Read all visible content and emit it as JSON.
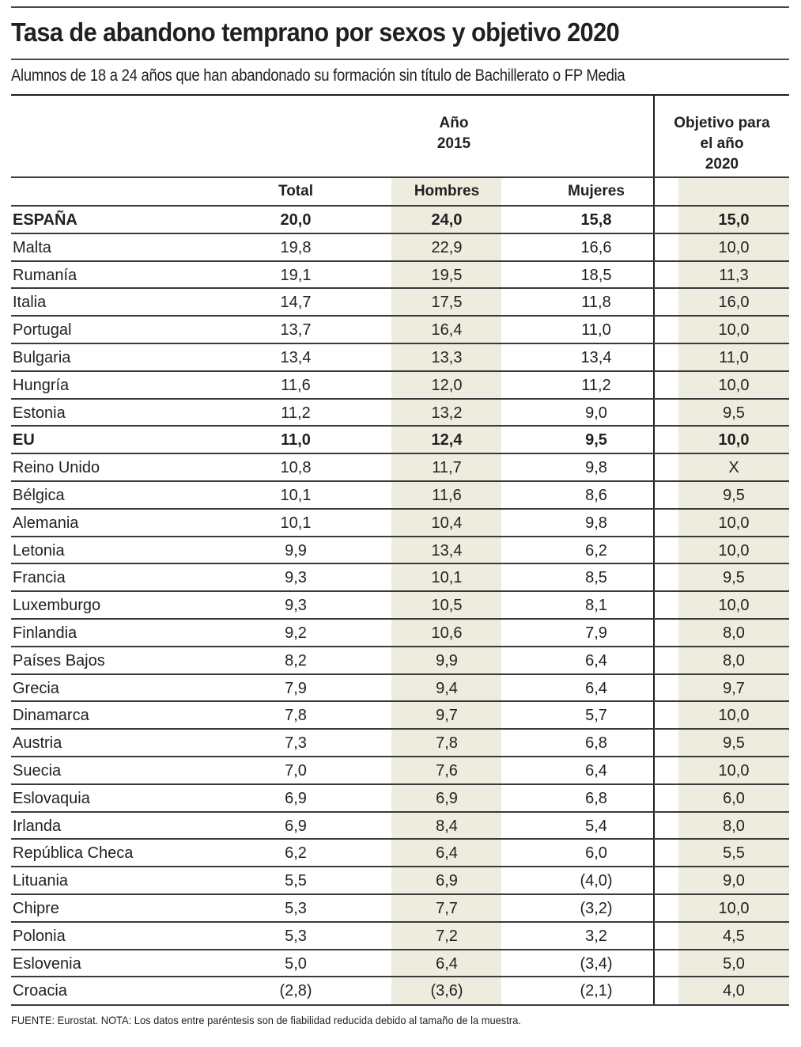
{
  "header": {
    "title": "Tasa de abandono temprano por sexos y objetivo 2020",
    "subtitle": "Alumnos de 18 a 24 años que han abandonado su formación sin título de Bachillerato o FP Media"
  },
  "table": {
    "group_header_year": [
      "Año",
      "2015"
    ],
    "group_header_objective": [
      "Objetivo para",
      "el año",
      "2020"
    ],
    "columns": [
      "Total",
      "Hombres",
      "Mujeres",
      ""
    ],
    "rows": [
      {
        "country": "ESPAÑA",
        "total": "20,0",
        "hombres": "24,0",
        "mujeres": "15,8",
        "objetivo": "15,0",
        "bold": true
      },
      {
        "country": "Malta",
        "total": "19,8",
        "hombres": "22,9",
        "mujeres": "16,6",
        "objetivo": "10,0",
        "bold": false
      },
      {
        "country": "Rumanía",
        "total": "19,1",
        "hombres": "19,5",
        "mujeres": "18,5",
        "objetivo": "11,3",
        "bold": false
      },
      {
        "country": "Italia",
        "total": "14,7",
        "hombres": "17,5",
        "mujeres": "11,8",
        "objetivo": "16,0",
        "bold": false
      },
      {
        "country": "Portugal",
        "total": "13,7",
        "hombres": "16,4",
        "mujeres": "11,0",
        "objetivo": "10,0",
        "bold": false
      },
      {
        "country": "Bulgaria",
        "total": "13,4",
        "hombres": "13,3",
        "mujeres": "13,4",
        "objetivo": "11,0",
        "bold": false
      },
      {
        "country": "Hungría",
        "total": "11,6",
        "hombres": "12,0",
        "mujeres": "11,2",
        "objetivo": "10,0",
        "bold": false
      },
      {
        "country": "Estonia",
        "total": "11,2",
        "hombres": "13,2",
        "mujeres": "9,0",
        "objetivo": "9,5",
        "bold": false
      },
      {
        "country": "EU",
        "total": "11,0",
        "hombres": "12,4",
        "mujeres": "9,5",
        "objetivo": "10,0",
        "bold": true
      },
      {
        "country": "Reino Unido",
        "total": "10,8",
        "hombres": "11,7",
        "mujeres": "9,8",
        "objetivo": "X",
        "bold": false
      },
      {
        "country": "Bélgica",
        "total": "10,1",
        "hombres": "11,6",
        "mujeres": "8,6",
        "objetivo": "9,5",
        "bold": false
      },
      {
        "country": "Alemania",
        "total": "10,1",
        "hombres": "10,4",
        "mujeres": "9,8",
        "objetivo": "10,0",
        "bold": false
      },
      {
        "country": "Letonia",
        "total": "9,9",
        "hombres": "13,4",
        "mujeres": "6,2",
        "objetivo": "10,0",
        "bold": false
      },
      {
        "country": "Francia",
        "total": "9,3",
        "hombres": "10,1",
        "mujeres": "8,5",
        "objetivo": "9,5",
        "bold": false
      },
      {
        "country": "Luxemburgo",
        "total": "9,3",
        "hombres": "10,5",
        "mujeres": "8,1",
        "objetivo": "10,0",
        "bold": false
      },
      {
        "country": "Finlandia",
        "total": "9,2",
        "hombres": "10,6",
        "mujeres": "7,9",
        "objetivo": "8,0",
        "bold": false
      },
      {
        "country": "Países Bajos",
        "total": "8,2",
        "hombres": "9,9",
        "mujeres": "6,4",
        "objetivo": "8,0",
        "bold": false
      },
      {
        "country": "Grecia",
        "total": "7,9",
        "hombres": "9,4",
        "mujeres": "6,4",
        "objetivo": "9,7",
        "bold": false
      },
      {
        "country": "Dinamarca",
        "total": "7,8",
        "hombres": "9,7",
        "mujeres": "5,7",
        "objetivo": "10,0",
        "bold": false
      },
      {
        "country": "Austria",
        "total": "7,3",
        "hombres": "7,8",
        "mujeres": "6,8",
        "objetivo": "9,5",
        "bold": false
      },
      {
        "country": "Suecia",
        "total": "7,0",
        "hombres": "7,6",
        "mujeres": "6,4",
        "objetivo": "10,0",
        "bold": false
      },
      {
        "country": "Eslovaquia",
        "total": "6,9",
        "hombres": "6,9",
        "mujeres": "6,8",
        "objetivo": "6,0",
        "bold": false
      },
      {
        "country": "Irlanda",
        "total": "6,9",
        "hombres": "8,4",
        "mujeres": "5,4",
        "objetivo": "8,0",
        "bold": false
      },
      {
        "country": "República Checa",
        "total": "6,2",
        "hombres": "6,4",
        "mujeres": "6,0",
        "objetivo": "5,5",
        "bold": false
      },
      {
        "country": "Lituania",
        "total": "5,5",
        "hombres": "6,9",
        "mujeres": "(4,0)",
        "objetivo": "9,0",
        "bold": false
      },
      {
        "country": "Chipre",
        "total": "5,3",
        "hombres": "7,7",
        "mujeres": "(3,2)",
        "objetivo": "10,0",
        "bold": false
      },
      {
        "country": "Polonia",
        "total": "5,3",
        "hombres": "7,2",
        "mujeres": "3,2",
        "objetivo": "4,5",
        "bold": false
      },
      {
        "country": "Eslovenia",
        "total": "5,0",
        "hombres": "6,4",
        "mujeres": "(3,4)",
        "objetivo": "5,0",
        "bold": false
      },
      {
        "country": "Croacia",
        "total": "(2,8)",
        "hombres": "(3,6)",
        "mujeres": "(2,1)",
        "objetivo": "4,0",
        "bold": false
      }
    ]
  },
  "footer": "FUENTE: Eurostat. NOTA: Los datos entre paréntesis son de fiabilidad reducida debido al tamaño de la muestra.",
  "colors": {
    "shade": "#eeebdf",
    "text": "#231f20",
    "rule": "#3a3a3a"
  },
  "chart_data": {
    "type": "table",
    "title": "Tasa de abandono temprano por sexos y objetivo 2020",
    "subtitle": "Alumnos de 18 a 24 años que han abandonado su formación sin título de Bachillerato o FP Media",
    "column_groups": [
      {
        "label": "Año 2015",
        "columns": [
          "Total",
          "Hombres",
          "Mujeres"
        ]
      },
      {
        "label": "Objetivo para el año 2020",
        "columns": [
          "Objetivo 2020"
        ]
      }
    ],
    "categories": [
      "ESPAÑA",
      "Malta",
      "Rumanía",
      "Italia",
      "Portugal",
      "Bulgaria",
      "Hungría",
      "Estonia",
      "EU",
      "Reino Unido",
      "Bélgica",
      "Alemania",
      "Letonia",
      "Francia",
      "Luxemburgo",
      "Finlandia",
      "Países Bajos",
      "Grecia",
      "Dinamarca",
      "Austria",
      "Suecia",
      "Eslovaquia",
      "Irlanda",
      "República Checa",
      "Lituania",
      "Chipre",
      "Polonia",
      "Eslovenia",
      "Croacia"
    ],
    "series": [
      {
        "name": "Total",
        "values": [
          20.0,
          19.8,
          19.1,
          14.7,
          13.7,
          13.4,
          11.6,
          11.2,
          11.0,
          10.8,
          10.1,
          10.1,
          9.9,
          9.3,
          9.3,
          9.2,
          8.2,
          7.9,
          7.8,
          7.3,
          7.0,
          6.9,
          6.9,
          6.2,
          5.5,
          5.3,
          5.3,
          5.0,
          2.8
        ]
      },
      {
        "name": "Hombres",
        "values": [
          24.0,
          22.9,
          19.5,
          17.5,
          16.4,
          13.3,
          12.0,
          13.2,
          12.4,
          11.7,
          11.6,
          10.4,
          13.4,
          10.1,
          10.5,
          10.6,
          9.9,
          9.4,
          9.7,
          7.8,
          7.6,
          6.9,
          8.4,
          6.4,
          6.9,
          7.7,
          7.2,
          6.4,
          3.6
        ]
      },
      {
        "name": "Mujeres",
        "values": [
          15.8,
          16.6,
          18.5,
          11.8,
          11.0,
          13.4,
          11.2,
          9.0,
          9.5,
          9.8,
          8.6,
          9.8,
          6.2,
          8.5,
          8.1,
          7.9,
          6.4,
          6.4,
          5.7,
          6.8,
          6.4,
          6.8,
          5.4,
          6.0,
          4.0,
          3.2,
          3.2,
          3.4,
          2.1
        ]
      },
      {
        "name": "Objetivo 2020",
        "values": [
          15.0,
          10.0,
          11.3,
          16.0,
          10.0,
          11.0,
          10.0,
          9.5,
          10.0,
          null,
          9.5,
          10.0,
          10.0,
          9.5,
          10.0,
          8.0,
          8.0,
          9.7,
          10.0,
          9.5,
          10.0,
          6.0,
          8.0,
          5.5,
          9.0,
          10.0,
          4.5,
          5.0,
          4.0
        ]
      }
    ],
    "notes": "Reino Unido objetivo shown as 'X'. Values in parentheses are of reduced reliability: Lituania/Chipre/Eslovenia Mujeres, Croacia Total/Hombres/Mujeres.",
    "source": "FUENTE: Eurostat."
  }
}
